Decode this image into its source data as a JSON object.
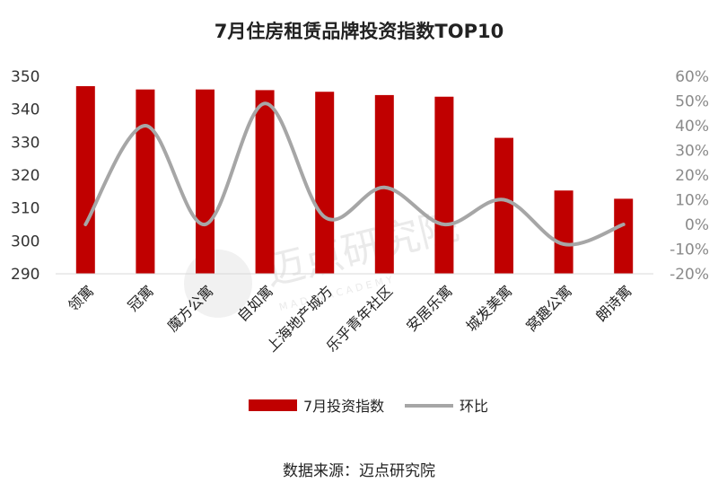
{
  "chart_data": {
    "type": "bar",
    "title": "7月住房租赁品牌投资指数TOP10",
    "categories": [
      "领寓",
      "冠寓",
      "魔方公寓",
      "自如寓",
      "上海地产城方",
      "乐乎青年社区",
      "安居乐寓",
      "城发美寓",
      "窝趣公寓",
      "朗诗寓"
    ],
    "series": [
      {
        "name": "7月投资指数",
        "type": "bar",
        "axis": "left",
        "color": "#c00000",
        "values": [
          347.0,
          346.0,
          346.0,
          345.8,
          345.3,
          344.3,
          343.8,
          331.3,
          315.3,
          312.8
        ]
      },
      {
        "name": "环比",
        "type": "line",
        "axis": "right",
        "color": "#a6a6a6",
        "unit": "%",
        "values": [
          0,
          40,
          0,
          49,
          3,
          15,
          0,
          10,
          -8,
          0
        ]
      }
    ],
    "y_left": {
      "min": 290,
      "max": 350,
      "ticks": [
        350,
        340,
        330,
        320,
        310,
        300,
        290
      ]
    },
    "y_right": {
      "min": -20,
      "max": 60,
      "ticks": [
        "60%",
        "50%",
        "40%",
        "30%",
        "20%",
        "10%",
        "0%",
        "-10%",
        "-20%"
      ]
    },
    "legend_position": "bottom",
    "grid": false
  },
  "source_text": "数据来源：迈点研究院",
  "watermark": {
    "cn": "迈点研究院",
    "en": "M A D I N   A C A D E M Y"
  }
}
